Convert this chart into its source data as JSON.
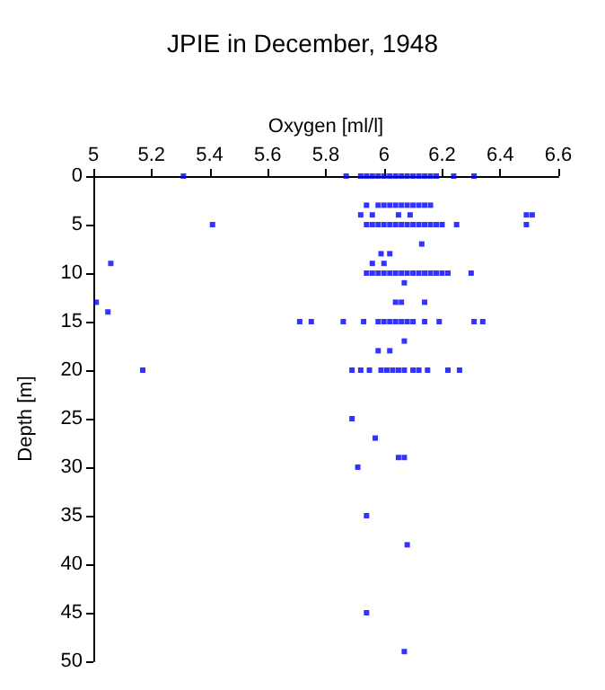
{
  "chart_data": {
    "type": "scatter",
    "title": "JPIE in December, 1948",
    "xlabel": "Oxygen [ml/l]",
    "ylabel": "Depth [m]",
    "x": [
      5.31,
      5.87,
      5.92,
      5.94,
      5.96,
      5.98,
      6.0,
      6.02,
      6.04,
      6.06,
      6.08,
      6.1,
      6.12,
      6.14,
      6.16,
      6.18,
      6.24,
      6.31,
      5.94,
      5.98,
      6.0,
      6.02,
      6.04,
      6.06,
      6.08,
      6.1,
      6.12,
      6.14,
      6.16,
      5.92,
      5.96,
      6.05,
      6.09,
      6.49,
      6.51,
      5.41,
      5.94,
      5.96,
      5.98,
      6.0,
      6.02,
      6.04,
      6.06,
      6.08,
      6.1,
      6.12,
      6.14,
      6.16,
      6.18,
      6.2,
      6.25,
      6.49,
      6.13,
      5.99,
      6.02,
      5.06,
      5.96,
      6.0,
      5.94,
      5.96,
      5.98,
      6.0,
      6.02,
      6.04,
      6.06,
      6.08,
      6.1,
      6.12,
      6.14,
      6.16,
      6.18,
      6.2,
      6.22,
      6.3,
      6.07,
      5.01,
      6.04,
      6.06,
      6.14,
      5.05,
      5.71,
      5.75,
      5.86,
      5.93,
      5.98,
      6.0,
      6.02,
      6.04,
      6.06,
      6.08,
      6.1,
      6.14,
      6.19,
      6.31,
      6.34,
      6.07,
      5.98,
      6.02,
      5.17,
      5.89,
      5.92,
      5.95,
      5.99,
      6.01,
      6.03,
      6.05,
      6.07,
      6.1,
      6.12,
      6.15,
      6.22,
      6.26,
      5.89,
      5.97,
      6.05,
      6.07,
      5.91,
      5.94,
      6.08,
      5.94,
      6.07
    ],
    "values": [
      0,
      0,
      0,
      0,
      0,
      0,
      0,
      0,
      0,
      0,
      0,
      0,
      0,
      0,
      0,
      0,
      0,
      0,
      3,
      3,
      3,
      3,
      3,
      3,
      3,
      3,
      3,
      3,
      3,
      4,
      4,
      4,
      4,
      4,
      4,
      5,
      5,
      5,
      5,
      5,
      5,
      5,
      5,
      5,
      5,
      5,
      5,
      5,
      5,
      5,
      5,
      5,
      7,
      8,
      8,
      9,
      9,
      9,
      10,
      10,
      10,
      10,
      10,
      10,
      10,
      10,
      10,
      10,
      10,
      10,
      10,
      10,
      10,
      10,
      11,
      13,
      13,
      13,
      13,
      14,
      15,
      15,
      15,
      15,
      15,
      15,
      15,
      15,
      15,
      15,
      15,
      15,
      15,
      15,
      15,
      17,
      18,
      18,
      20,
      20,
      20,
      20,
      20,
      20,
      20,
      20,
      20,
      20,
      20,
      20,
      20,
      20,
      25,
      27,
      29,
      29,
      30,
      35,
      38,
      45,
      49
    ],
    "color": "#0000ff",
    "marker": "square",
    "xlim": [
      5,
      6.6
    ],
    "xticks": [
      5,
      5.2,
      5.4,
      5.6,
      5.8,
      6,
      6.2,
      6.4,
      6.6
    ],
    "ylim": [
      50,
      0
    ],
    "yticks": [
      0,
      5,
      10,
      15,
      20,
      25,
      30,
      35,
      40,
      45,
      50
    ],
    "grid": false
  }
}
